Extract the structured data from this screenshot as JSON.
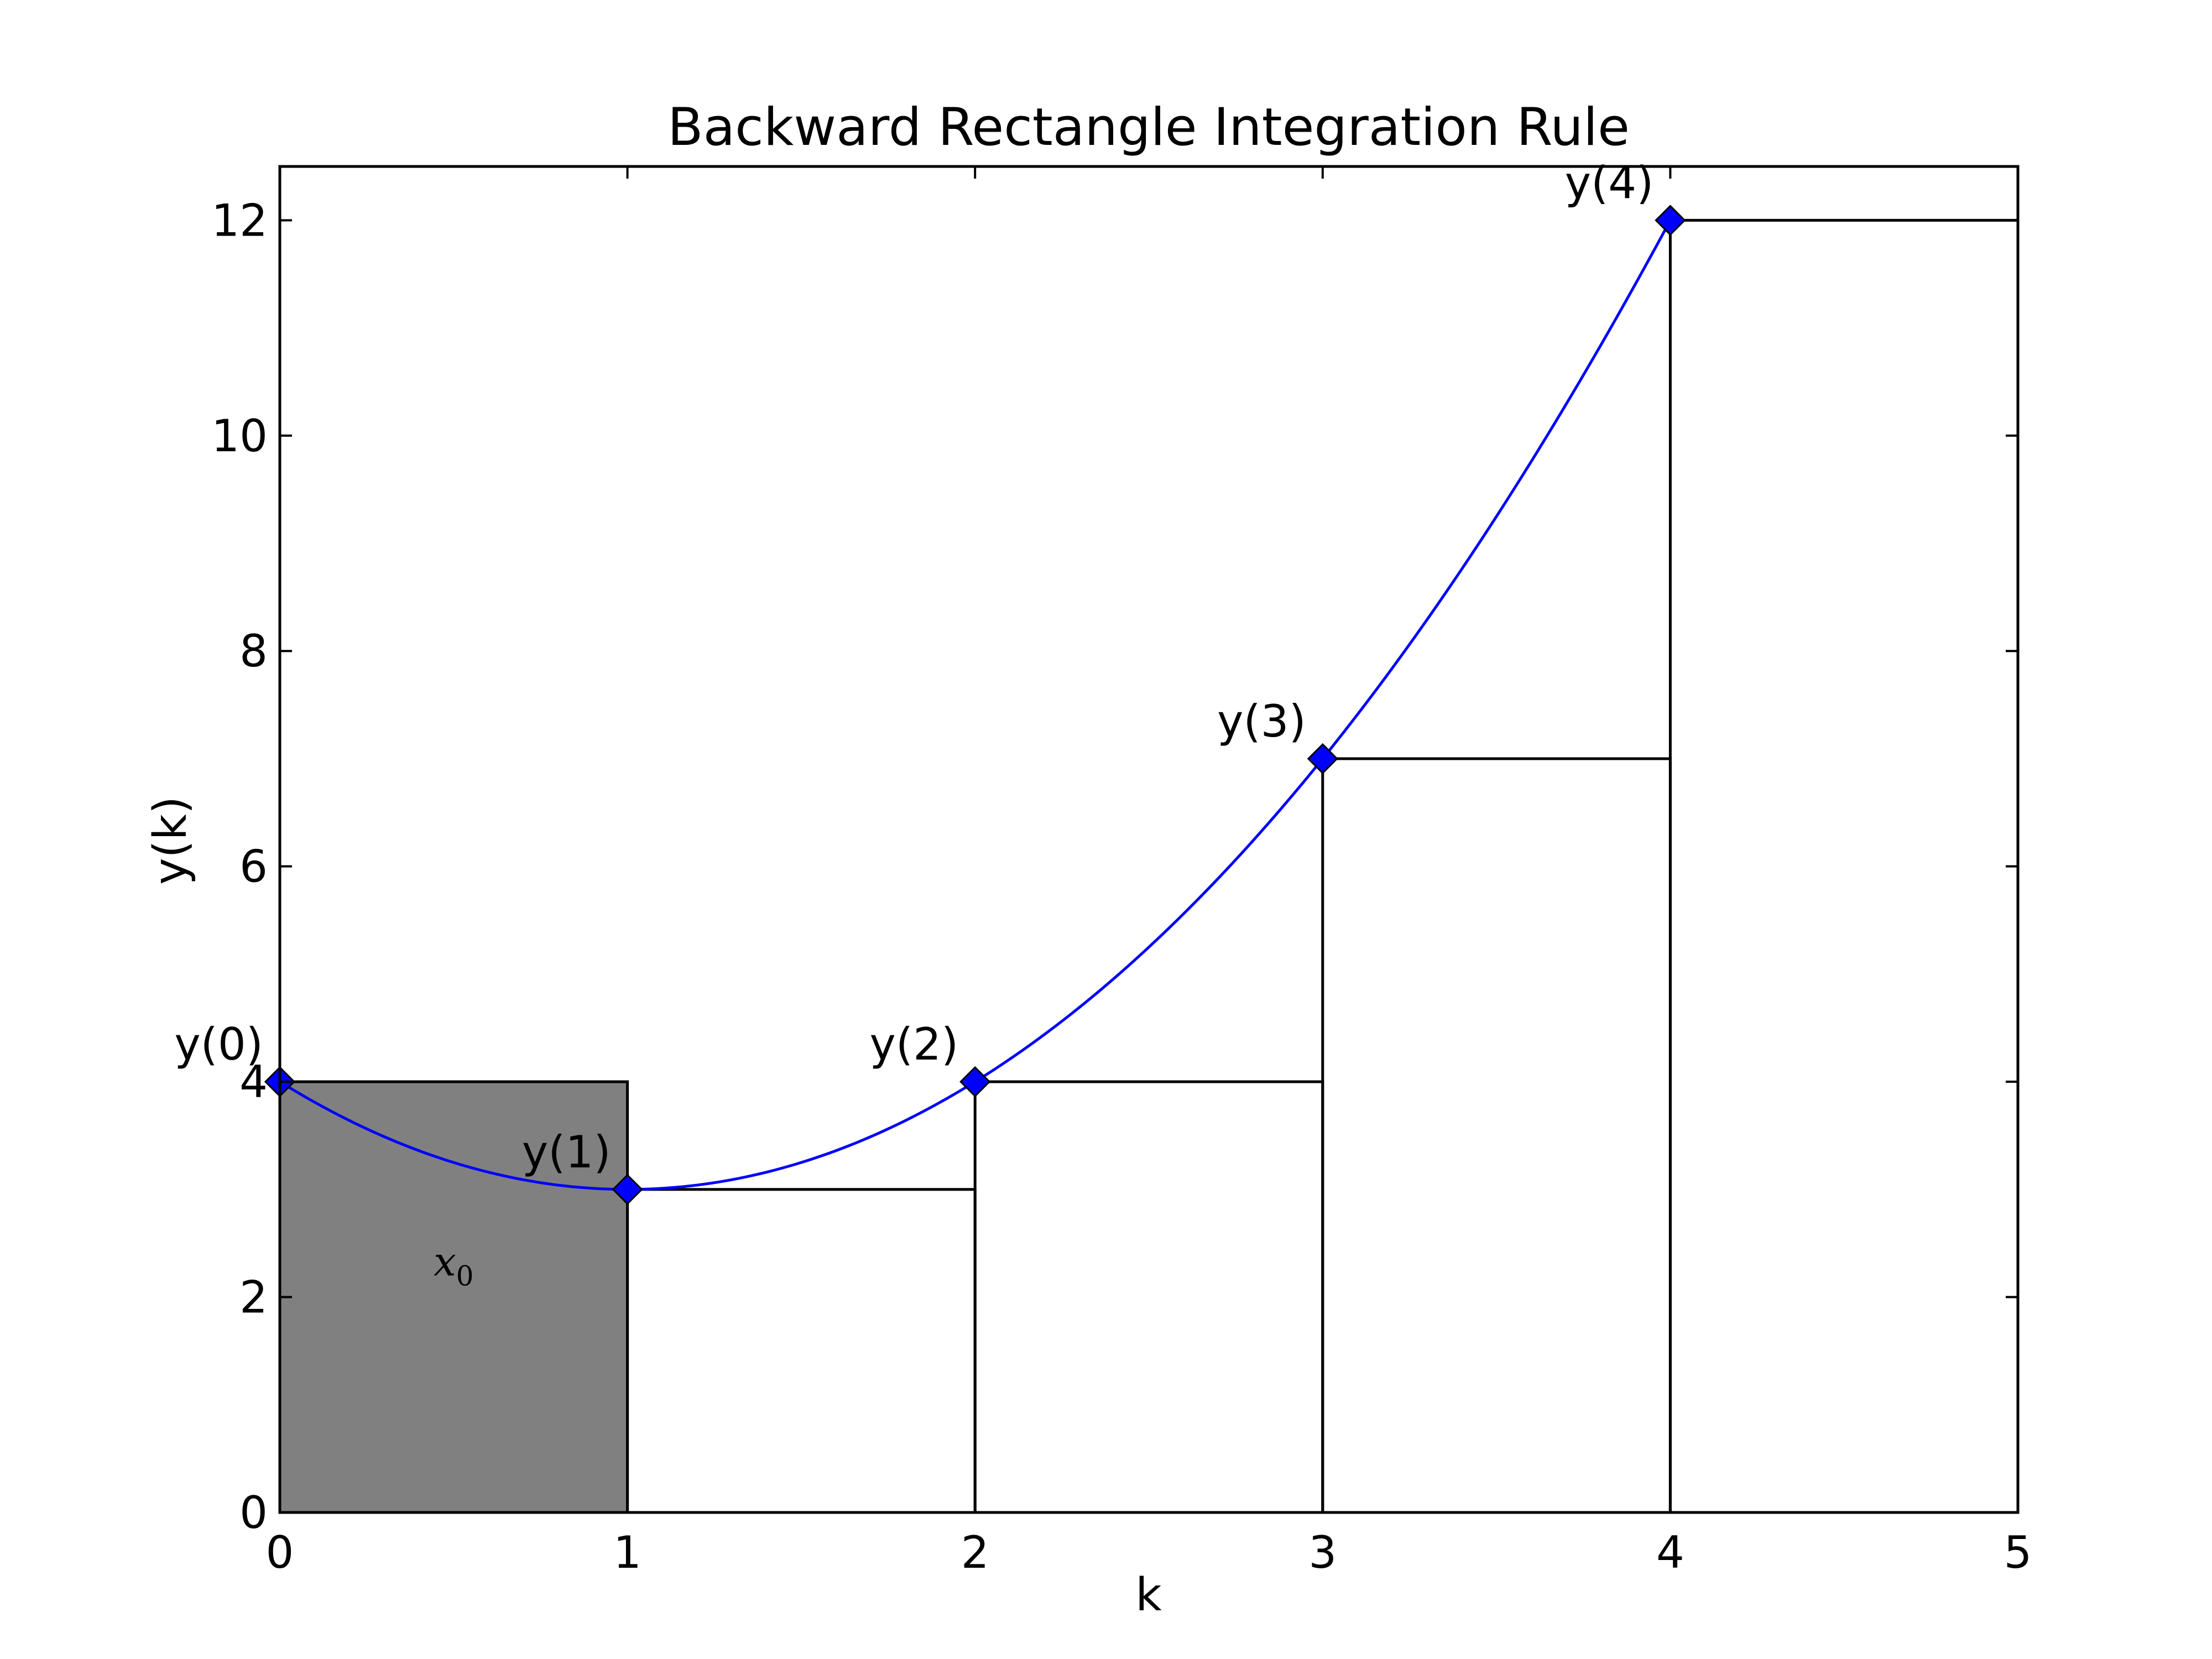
{
  "chart_data": {
    "type": "line",
    "title": "Backward Rectangle Integration Rule",
    "xlabel": "k",
    "ylabel": "y(k)",
    "xlim": [
      0,
      5
    ],
    "ylim": [
      0,
      12.5
    ],
    "xticks": [
      0,
      1,
      2,
      3,
      4,
      5
    ],
    "yticks": [
      0,
      2,
      4,
      6,
      8,
      10,
      12
    ],
    "grid": false,
    "series": [
      {
        "type": "line",
        "color": "#0000ff",
        "marker": "diamond",
        "x": [
          0,
          1,
          2,
          3,
          4
        ],
        "y": [
          4,
          3,
          4,
          7,
          12
        ],
        "curve": "quadratic-fit"
      }
    ],
    "point_labels": [
      "y(0)",
      "y(1)",
      "y(2)",
      "y(3)",
      "y(4)"
    ],
    "rectangles": [
      {
        "x0": 0,
        "x1": 1,
        "height": 4,
        "filled": true,
        "fill": "#808080"
      },
      {
        "x0": 1,
        "x1": 2,
        "height": 3,
        "filled": false
      },
      {
        "x0": 2,
        "x1": 3,
        "height": 4,
        "filled": false
      },
      {
        "x0": 3,
        "x1": 4,
        "height": 7,
        "filled": false
      },
      {
        "x0": 4,
        "x1": 5,
        "height": 12,
        "filled": false
      }
    ],
    "annotation": {
      "text": "x",
      "subscript": "0",
      "x": 0.5,
      "y": 2.2
    }
  }
}
